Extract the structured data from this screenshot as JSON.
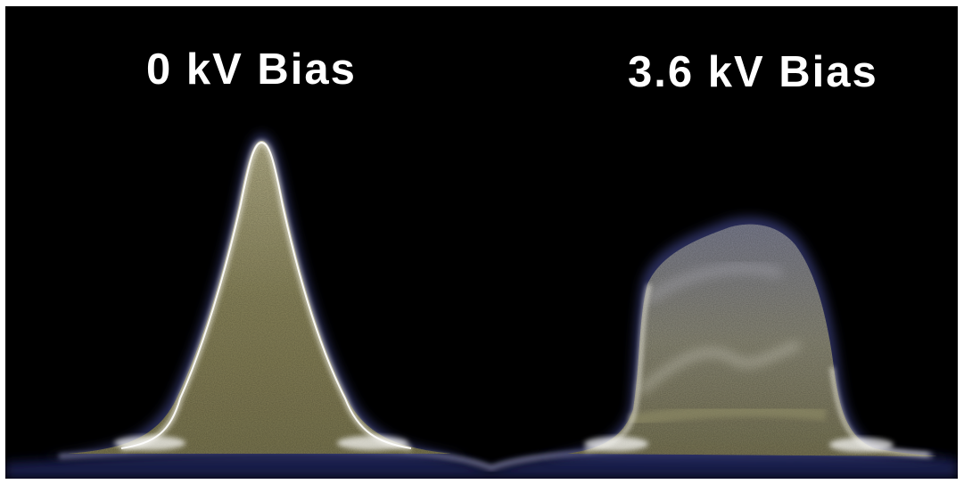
{
  "panels": [
    {
      "label": "0 kV Bias"
    },
    {
      "label": "3.6 kV Bias"
    }
  ],
  "colors": {
    "background": "#000000",
    "plume_core": "#8a8560",
    "plume_edge": "#f4f2ea",
    "plume_halo": "#4a4f8a"
  }
}
